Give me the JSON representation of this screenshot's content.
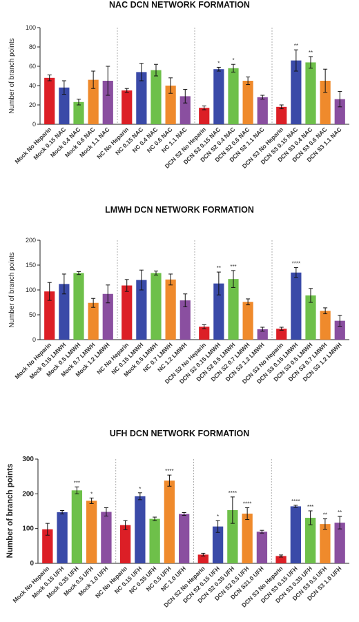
{
  "colors": {
    "red": "#dc1f26",
    "blue": "#3a4aa8",
    "green": "#6ec04a",
    "orange": "#ef8a2c",
    "purple": "#8a4fa0"
  },
  "chart_data": [
    {
      "type": "bar",
      "title": "NAC DCN NETWORK FORMATION",
      "ylabel": "Number of branch points",
      "ylim": [
        0,
        100
      ],
      "yticks": [
        0,
        20,
        40,
        60,
        80,
        100
      ],
      "grid": false,
      "categories": [
        "Mock No Heparin",
        "Mock 0.15 NAC",
        "Mock 0.4 NAC",
        "Mock 0.6 NAC",
        "Mock 1.1 NAC",
        "NC No Heparin",
        "NC 0.15 NAC",
        "NC 0.4 NAC",
        "NC 0.6 NAC",
        "NC 1.1 NAC",
        "DCN S2 No Heparin",
        "DCN S2 0.15 NAC",
        "DCN S2 0.4 NAC",
        "DCN S2 0.6 NAC",
        "DCN S2 1.1 NAC",
        "DCN S3 No Heparin",
        "DCN S3 0.15 NAC",
        "DCN S3 0.4 NAC",
        "DCN S3 0.6 NAC",
        "DCN S3 1.1 NAC"
      ],
      "values": [
        48,
        38,
        23,
        46,
        45,
        35,
        54,
        56,
        40,
        29,
        17,
        57,
        58,
        45,
        28,
        18,
        66,
        64,
        45,
        26
      ],
      "errors": [
        3,
        7,
        3,
        9,
        15,
        2,
        9,
        6,
        8,
        7,
        2,
        2,
        4,
        4,
        2,
        2,
        11,
        6,
        12,
        8
      ],
      "significance": [
        "",
        "",
        "",
        "",
        "",
        "",
        "",
        "",
        "",
        "",
        "",
        "*",
        "*",
        "",
        "",
        "",
        "**",
        "**",
        "",
        ""
      ]
    },
    {
      "type": "bar",
      "title": "LMWH DCN NETWORK FORMATION",
      "ylabel": "Number of branch points",
      "ylim": [
        0,
        200
      ],
      "yticks": [
        0,
        50,
        100,
        150,
        200
      ],
      "grid": false,
      "categories": [
        "Mock No Heparin",
        "Mock 0.15 LMWH",
        "Mock 0.5 LMWH",
        "Mock 0.7 LMWH",
        "Mock 1.2 LMWH",
        "NC No Heparin",
        "NC 0.15 LMWH",
        "Mock 0.5 LMWH",
        "NC 0.7 LMWH",
        "NC 1.2 LMWH",
        "DCN S2 No Heparin",
        "DCN S2 0.15 LMWH",
        "DCN S2 0.5 LMWH",
        "DCN S2 0.7 LMWH",
        "DCN S2 1.2 LMWH",
        "DCN S3 No Heparin",
        "DCN S3 0.15 LMWH",
        "DCN S3 0.5 LMWH",
        "DCN S3 0.7 LMWH",
        "DCN S3 1.2 LMWH"
      ],
      "values": [
        97,
        112,
        134,
        74,
        92,
        109,
        120,
        134,
        121,
        79,
        26,
        113,
        122,
        76,
        21,
        22,
        135,
        89,
        58,
        38
      ],
      "errors": [
        18,
        20,
        3,
        9,
        18,
        12,
        20,
        4,
        11,
        13,
        4,
        23,
        17,
        6,
        4,
        3,
        10,
        14,
        6,
        11
      ],
      "significance": [
        "",
        "",
        "",
        "",
        "",
        "",
        "",
        "",
        "",
        "",
        "",
        "**",
        "***",
        "",
        "",
        "",
        "****",
        "",
        "",
        ""
      ]
    },
    {
      "type": "bar",
      "title": "UFH DCN NETWORK FORMATION",
      "ylabel": "Number of branch points",
      "ylim": [
        0,
        300
      ],
      "yticks": [
        0,
        100,
        200,
        300
      ],
      "grid": false,
      "categories": [
        "Mock No Heparin",
        "Mock 0.15 UFH",
        "Mock 0.35 UFH",
        "Mock 0.5 UFH",
        "Mock 1.0 UFH",
        "NC No Heparin",
        "NC 0.15 UFH",
        "NC 0.35 UFH",
        "NC 0.5 UFH",
        "NC 1.0 UFH",
        "DCN S2 No Heparin",
        "DCN S2 0.15 UFH",
        "DCN S2 0.35 UFH",
        "DCN S2 0.5 UFH",
        "DCN S21.0 UFH",
        "DCN S3 No Heparin",
        "DCN S3 0.15 UFH",
        "DCN S3 0.35 UFH",
        "DCN S3 0.5 UFH",
        "DCN S3 1.0 UFH"
      ],
      "values": [
        98,
        147,
        210,
        180,
        148,
        110,
        193,
        128,
        238,
        142,
        25,
        106,
        153,
        143,
        91,
        21,
        164,
        131,
        113,
        117
      ],
      "errors": [
        17,
        5,
        10,
        8,
        12,
        13,
        10,
        5,
        16,
        4,
        4,
        17,
        38,
        17,
        4,
        3,
        3,
        20,
        15,
        18
      ],
      "significance": [
        "",
        "",
        "***",
        "*",
        "",
        "",
        "*",
        "",
        "****",
        "",
        "",
        "*",
        "****",
        "****",
        "",
        "",
        "****",
        "***",
        "**",
        "**"
      ]
    }
  ]
}
